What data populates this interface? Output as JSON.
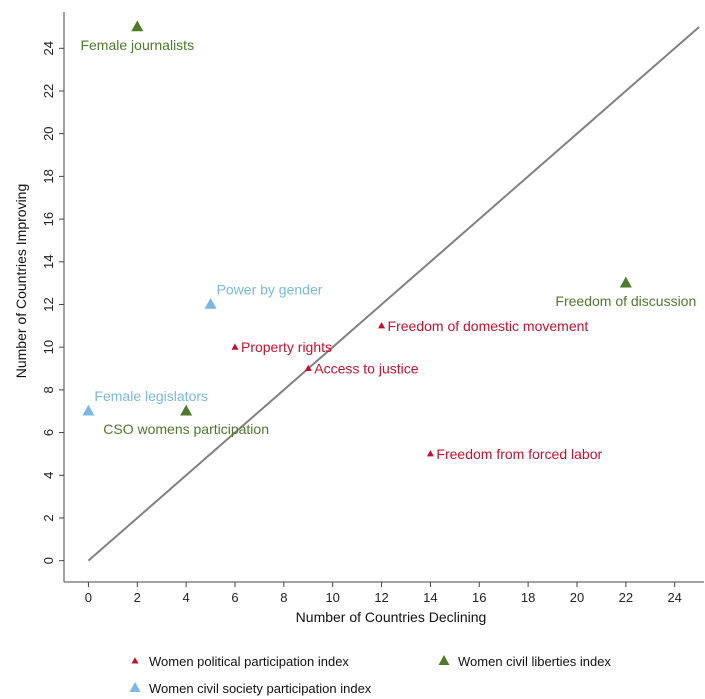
{
  "chart_data": {
    "type": "scatter",
    "title": "",
    "xlabel": "Number of Countries Declining",
    "ylabel": "Number of Countries Improving",
    "xlim": [
      -1,
      25.2
    ],
    "ylim": [
      -1,
      25.7
    ],
    "xticks": [
      0,
      2,
      4,
      6,
      8,
      10,
      12,
      14,
      16,
      18,
      20,
      22,
      24
    ],
    "yticks": [
      0,
      2,
      4,
      6,
      8,
      10,
      12,
      14,
      16,
      18,
      20,
      22,
      24
    ],
    "grid": false,
    "reference_line": {
      "from": [
        0,
        0
      ],
      "to": [
        25,
        25
      ],
      "color": "#808080"
    },
    "legend_position": "bottom",
    "series": [
      {
        "name": "Women political participation index",
        "color": "#c8102e",
        "marker": "small-triangle",
        "points": [
          {
            "x": 6,
            "y": 10,
            "label": "Property rights",
            "label_side": "right"
          },
          {
            "x": 9,
            "y": 9,
            "label": "Access to justice",
            "label_side": "right"
          },
          {
            "x": 12,
            "y": 11,
            "label": "Freedom of domestic movement",
            "label_side": "right"
          },
          {
            "x": 14,
            "y": 5,
            "label": "Freedom from forced labor",
            "label_side": "right"
          }
        ]
      },
      {
        "name": "Women civil liberties index",
        "color": "#4e7a2b",
        "marker": "triangle",
        "points": [
          {
            "x": 2,
            "y": 25,
            "label": "Female journalists",
            "label_side": "below"
          },
          {
            "x": 22,
            "y": 13,
            "label": "Freedom of discussion",
            "label_side": "below"
          },
          {
            "x": 4,
            "y": 7,
            "label": "CSO womens participation",
            "label_side": "below"
          }
        ]
      },
      {
        "name": "Women civil society participation index",
        "color": "#7ab8e3",
        "marker": "triangle",
        "points": [
          {
            "x": 5,
            "y": 12,
            "label": "Power by gender",
            "label_side": "above-right"
          },
          {
            "x": 0,
            "y": 7,
            "label": "Female legislators",
            "label_side": "above-right"
          }
        ]
      }
    ]
  }
}
